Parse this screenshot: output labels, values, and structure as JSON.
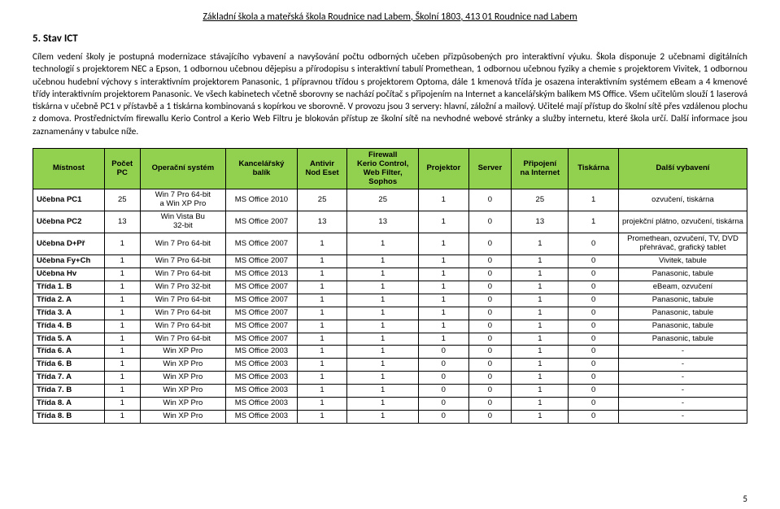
{
  "header": "Základní škola a mateřská škola Roudnice nad Labem, Školní 1803, 413 01 Roudnice nad Labem",
  "section_title": "5. Stav ICT",
  "body_text": "Cílem vedení školy je postupná modernizace stávajícího vybavení a navyšování počtu odborných učeben přizpůsobených pro interaktivní výuku. Škola disponuje 2 učebnami digitálních technologií s projektorem NEC a Epson, 1 odbornou učebnou dějepisu a přírodopisu s interaktivní tabulí Promethean, 1 odbornou učebnou fyziky a chemie s projektorem Vivitek, 1 odbornou učebnou hudební výchovy s interaktivním projektorem Panasonic, 1 přípravnou třídou s projektorem Optoma, dále 1 kmenová třída je osazena interaktivním systémem eBeam a 4 kmenové třídy interaktivním projektorem Panasonic. Ve všech kabinetech včetně sborovny se nachází počítač s připojením na Internet a kancelářským balíkem MS Office. Všem učitelům slouží 1 laserová tiskárna v učebně PC1 v přístavbě a 1 tiskárna kombinovaná s kopírkou ve sborovně. V provozu jsou 3 servery: hlavní, záložní a mailový. Učitelé mají přístup do školní sítě přes vzdálenou plochu z domova. Prostřednictvím firewallu Kerio Control a Kerio Web Filtru je blokován přístup ze školní sítě na nevhodné webové stránky a služby internetu, které škola určí. Další informace jsou zaznamenány v tabulce níže.",
  "table": {
    "columns": [
      {
        "key": "mistnost",
        "label": "Místnost",
        "width": "10%"
      },
      {
        "key": "pocet",
        "label": "Počet\nPC",
        "width": "5%"
      },
      {
        "key": "os",
        "label": "Operační systém",
        "width": "12%"
      },
      {
        "key": "office",
        "label": "Kancelářský\nbalík",
        "width": "10%"
      },
      {
        "key": "antivir",
        "label": "Antivir\nNod Eset",
        "width": "7%"
      },
      {
        "key": "firewall",
        "label": "Firewall\nKerio Control,\nWeb Filter,\nSophos",
        "width": "10%"
      },
      {
        "key": "projektor",
        "label": "Projektor",
        "width": "7%"
      },
      {
        "key": "server",
        "label": "Server",
        "width": "6%"
      },
      {
        "key": "internet",
        "label": "Připojení\nna Internet",
        "width": "8%"
      },
      {
        "key": "tiskarna",
        "label": "Tiskárna",
        "width": "7%"
      },
      {
        "key": "vybaveni",
        "label": "Další vybavení",
        "width": "18%"
      }
    ],
    "rows": [
      [
        "Učebna PC1",
        "25",
        "Win 7 Pro 64-bit\na Win XP Pro",
        "MS Office 2010",
        "25",
        "25",
        "1",
        "0",
        "25",
        "1",
        "ozvučení, tiskárna"
      ],
      [
        "Učebna PC2",
        "13",
        "Win Vista Bu\n32-bit",
        "MS Office 2007",
        "13",
        "13",
        "1",
        "0",
        "13",
        "1",
        "projekční plátno, ozvučení, tiskárna"
      ],
      [
        "Učebna D+Př",
        "1",
        "Win 7 Pro 64-bit",
        "MS Office 2007",
        "1",
        "1",
        "1",
        "0",
        "1",
        "0",
        "Promethean, ozvučení, TV, DVD\npřehrávač, grafický tablet"
      ],
      [
        "Učebna Fy+Ch",
        "1",
        "Win 7 Pro 64-bit",
        "MS Office 2007",
        "1",
        "1",
        "1",
        "0",
        "1",
        "0",
        "Vivitek, tabule"
      ],
      [
        "Učebna Hv",
        "1",
        "Win 7 Pro 64-bit",
        "MS Office 2013",
        "1",
        "1",
        "1",
        "0",
        "1",
        "0",
        "Panasonic, tabule"
      ],
      [
        "Třída 1. B",
        "1",
        "Win 7 Pro 32-bit",
        "MS Office 2007",
        "1",
        "1",
        "1",
        "0",
        "1",
        "0",
        "eBeam, ozvučení"
      ],
      [
        "Třída 2. A",
        "1",
        "Win 7 Pro 64-bit",
        "MS Office 2007",
        "1",
        "1",
        "1",
        "0",
        "1",
        "0",
        "Panasonic, tabule"
      ],
      [
        "Třída 3. A",
        "1",
        "Win 7 Pro 64-bit",
        "MS Office 2007",
        "1",
        "1",
        "1",
        "0",
        "1",
        "0",
        "Panasonic, tabule"
      ],
      [
        "Třída 4. B",
        "1",
        "Win 7 Pro 64-bit",
        "MS Office 2007",
        "1",
        "1",
        "1",
        "0",
        "1",
        "0",
        "Panasonic, tabule"
      ],
      [
        "Třída 5. A",
        "1",
        "Win 7 Pro 64-bit",
        "MS Office 2007",
        "1",
        "1",
        "1",
        "0",
        "1",
        "0",
        "Panasonic, tabule"
      ],
      [
        "Třída 6. A",
        "1",
        "Win XP Pro",
        "MS Office 2003",
        "1",
        "1",
        "0",
        "0",
        "1",
        "0",
        "-"
      ],
      [
        "Třída 6. B",
        "1",
        "Win XP Pro",
        "MS Office 2003",
        "1",
        "1",
        "0",
        "0",
        "1",
        "0",
        "-"
      ],
      [
        "Třída 7. A",
        "1",
        "Win XP Pro",
        "MS Office 2003",
        "1",
        "1",
        "0",
        "0",
        "1",
        "0",
        "-"
      ],
      [
        "Třída 7. B",
        "1",
        "Win XP Pro",
        "MS Office 2003",
        "1",
        "1",
        "0",
        "0",
        "1",
        "0",
        "-"
      ],
      [
        "Třída 8. A",
        "1",
        "Win XP Pro",
        "MS Office 2003",
        "1",
        "1",
        "0",
        "0",
        "1",
        "0",
        "-"
      ],
      [
        "Třída 8. B",
        "1",
        "Win XP Pro",
        "MS Office 2003",
        "1",
        "1",
        "0",
        "0",
        "1",
        "0",
        "-"
      ]
    ],
    "header_bg": "#92d050",
    "border_color": "#000000"
  },
  "page_number": "5"
}
